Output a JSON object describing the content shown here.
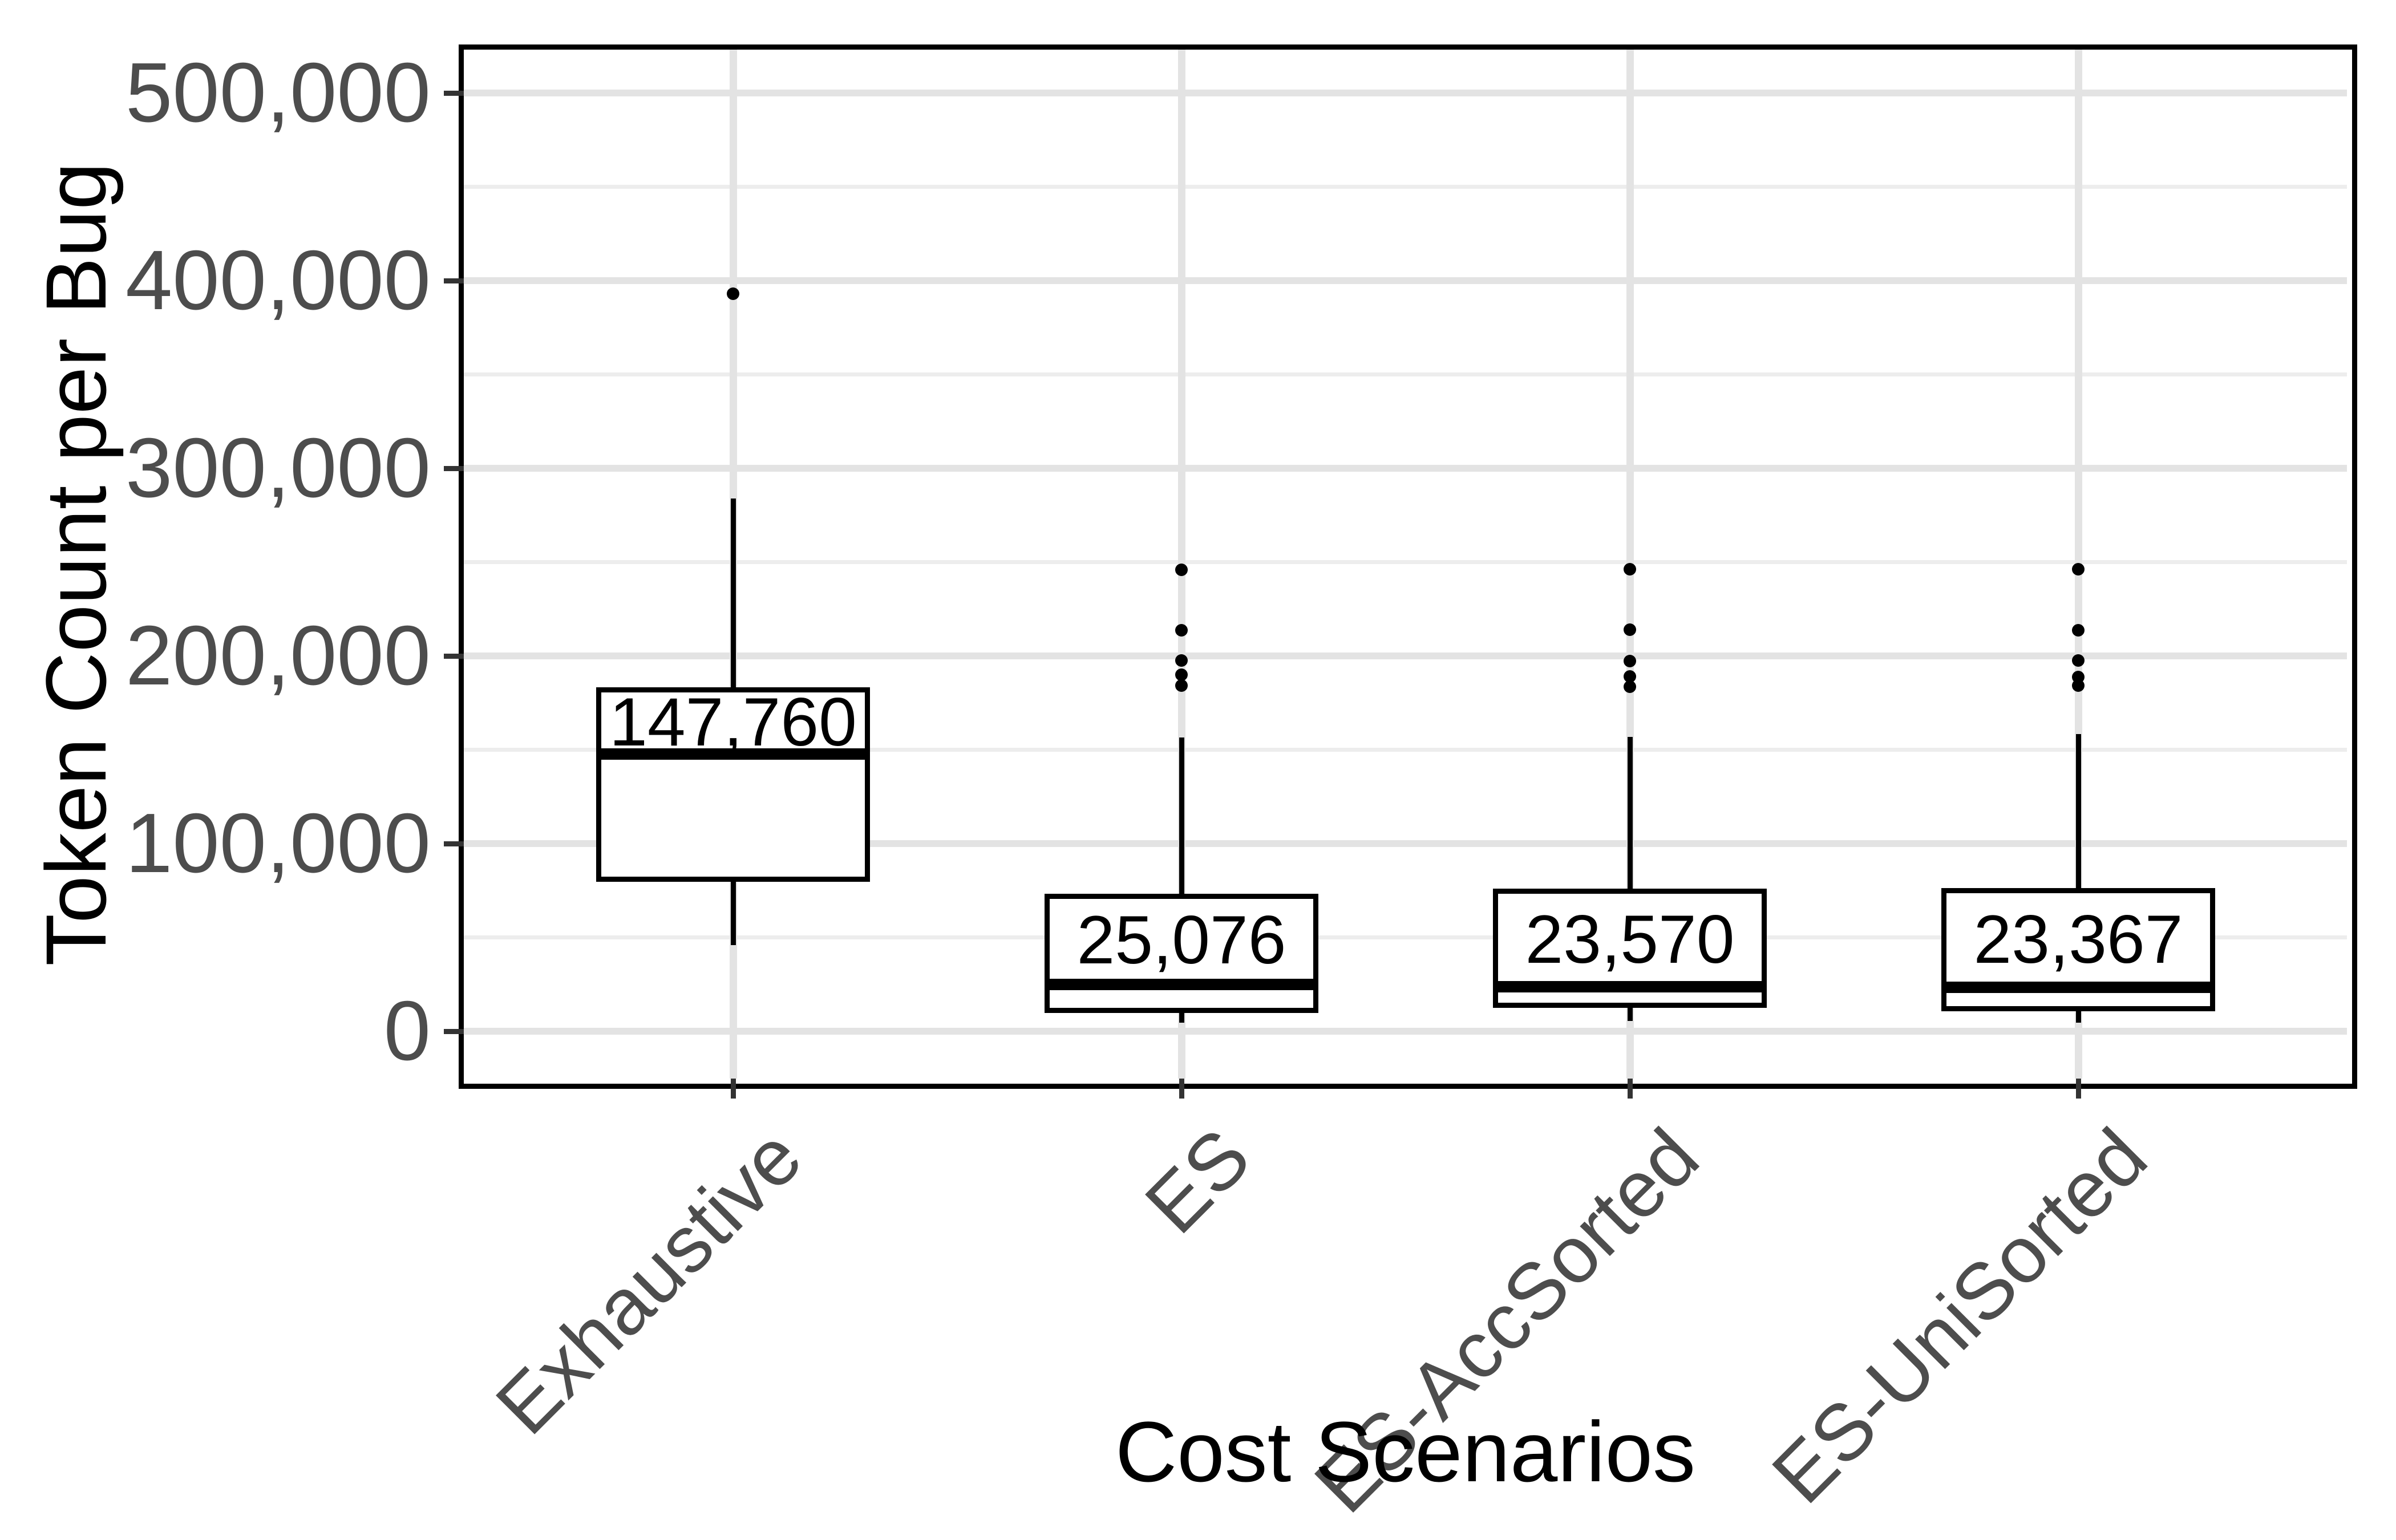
{
  "figure": {
    "background": "#ffffff"
  },
  "chart_data": {
    "type": "boxplot",
    "title": "",
    "xlabel": "Cost Scenarios",
    "ylabel": "Token Count per Bug",
    "categories": [
      "Exhaustive",
      "ES",
      "ES-AccSorted",
      "ES-UniSorted"
    ],
    "y_axis": {
      "range": [
        -25000,
        523000
      ],
      "major_ticks": [
        0,
        100000,
        200000,
        300000,
        400000,
        500000
      ],
      "major_tick_labels": [
        "0",
        "100,000",
        "200,000",
        "300,000",
        "400,000",
        "500,000"
      ],
      "minor_ticks": [
        50000,
        150000,
        250000,
        350000,
        450000
      ],
      "grid": "on"
    },
    "legend": "none",
    "series": [
      {
        "name": "Exhaustive",
        "median": 147760,
        "median_label": "147,760",
        "q1": 81000,
        "q3": 182000,
        "whisker_low": 46000,
        "whisker_high": 284000,
        "outliers": [
          393000
        ]
      },
      {
        "name": "ES",
        "median": 25076,
        "median_label": "25,076",
        "q1": 11000,
        "q3": 72000,
        "whisker_low": 4600,
        "whisker_high": 156500,
        "outliers": [
          246000,
          213700,
          197600,
          190000,
          184200
        ]
      },
      {
        "name": "ES-AccSorted",
        "median": 23570,
        "median_label": "23,570",
        "q1": 13700,
        "q3": 74500,
        "whisker_low": 5500,
        "whisker_high": 156800,
        "outliers": [
          246200,
          214000,
          197300,
          189100,
          183600
        ]
      },
      {
        "name": "ES-UniSorted",
        "median": 23367,
        "median_label": "23,367",
        "q1": 11900,
        "q3": 74800,
        "whisker_low": 4600,
        "whisker_high": 158400,
        "outliers": [
          246200,
          213700,
          197600,
          188800,
          184200
        ]
      }
    ]
  },
  "style": {
    "panel_border_color": "#000000",
    "grid_major_color": "#e3e3e3",
    "grid_minor_color": "#ededed",
    "axis_text_color": "#4d4d4d",
    "axis_title_color": "#000000",
    "tick_mark_color": "#333333",
    "box_color": "#000000",
    "box_fill": "#ffffff"
  }
}
